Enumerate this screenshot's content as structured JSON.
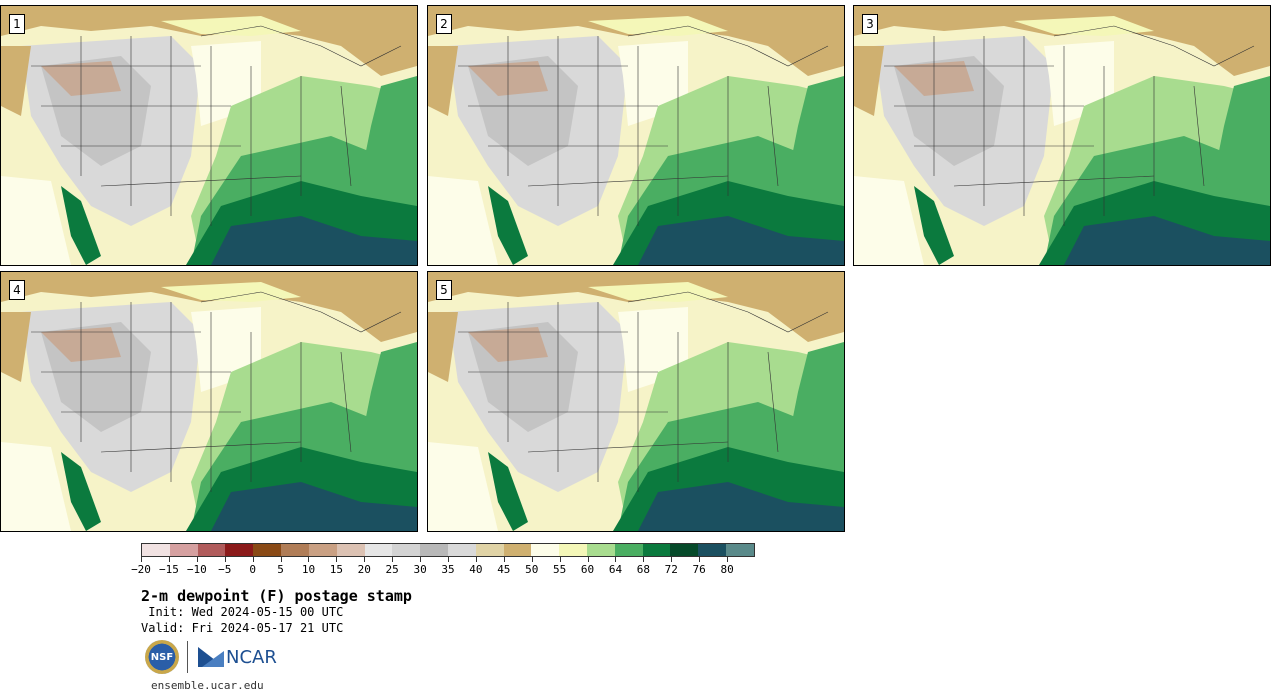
{
  "panels": [
    {
      "label": "1"
    },
    {
      "label": "2"
    },
    {
      "label": "3"
    },
    {
      "label": "4"
    },
    {
      "label": "5"
    }
  ],
  "colorbar": {
    "colors": [
      "#f1e2e2",
      "#d5a0a0",
      "#b05b5b",
      "#8b1a1a",
      "#8a4a16",
      "#b07d57",
      "#c9a083",
      "#dcc2b3",
      "#e6e6e6",
      "#d3d3d3",
      "#b8b8b8",
      "#d9d9d9",
      "#e0d3a6",
      "#cfb070",
      "#fdfde9",
      "#f4f7b8",
      "#a8dc8f",
      "#4aae62",
      "#0b7a3e",
      "#064a2a",
      "#1b5060",
      "#5a8a8a"
    ],
    "tick_labels": [
      "−20",
      "−15",
      "−10",
      "−5",
      "0",
      "5",
      "10",
      "15",
      "20",
      "25",
      "30",
      "35",
      "40",
      "45",
      "50",
      "55",
      "60",
      "64",
      "68",
      "72",
      "76",
      "80"
    ]
  },
  "title": "2-m dewpoint (F) postage stamp",
  "init": " Init: Wed 2024-05-15 00 UTC",
  "valid": "Valid: Fri 2024-05-17 21 UTC",
  "logos": {
    "nsf": "NSF",
    "ncar": "NCAR"
  },
  "url": "ensemble.ucar.edu"
}
